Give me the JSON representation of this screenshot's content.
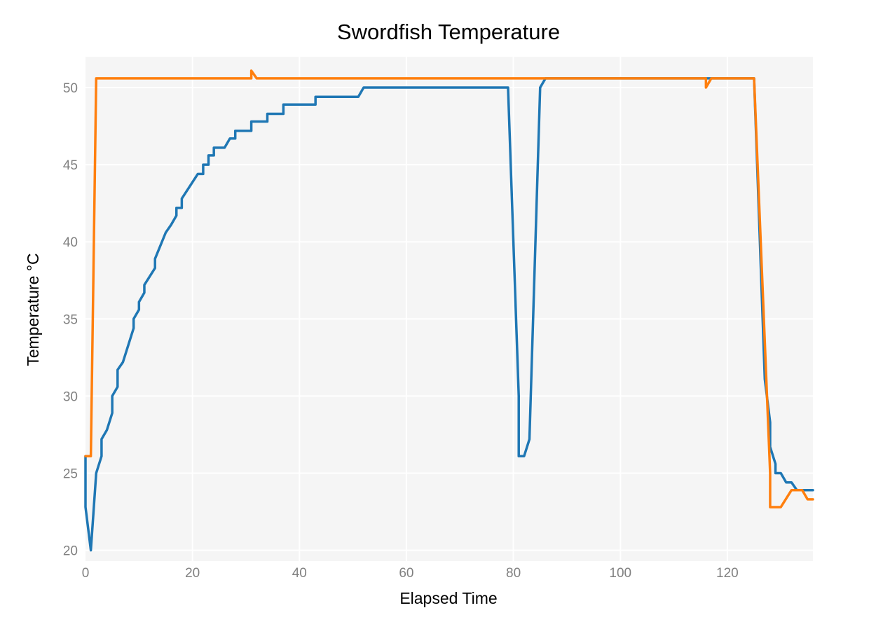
{
  "chart_data": {
    "type": "line",
    "title": "Swordfish Temperature",
    "xlabel": "Elapsed Time",
    "ylabel": "Temperature °C",
    "xlim": [
      0,
      136
    ],
    "ylim": [
      19.3,
      52
    ],
    "xticks": [
      0,
      20,
      40,
      60,
      80,
      100,
      120
    ],
    "yticks": [
      20,
      25,
      30,
      35,
      40,
      45,
      50
    ],
    "grid": true,
    "legend": "none",
    "plot_background": "#f5f5f5",
    "series": [
      {
        "color": "#1f77b4",
        "x": [
          0,
          0,
          1,
          2,
          3,
          3,
          4,
          5,
          5,
          6,
          6,
          7,
          9,
          9,
          10,
          10,
          11,
          11,
          13,
          13,
          15,
          16,
          17,
          17,
          18,
          18,
          21,
          22,
          22,
          23,
          23,
          24,
          24,
          26,
          27,
          28,
          28,
          31,
          31,
          34,
          34,
          37,
          37,
          43,
          43,
          51,
          52,
          79,
          81,
          81,
          82,
          83,
          85,
          86,
          125,
          127,
          128,
          128,
          129,
          129,
          130,
          131,
          132,
          133,
          136
        ],
        "y": [
          26.1,
          22.8,
          20.0,
          25.0,
          26.1,
          27.2,
          27.8,
          28.9,
          30.0,
          30.6,
          31.7,
          32.2,
          34.4,
          35.0,
          35.6,
          36.1,
          36.7,
          37.2,
          38.3,
          38.9,
          40.6,
          41.1,
          41.7,
          42.2,
          42.2,
          42.8,
          44.4,
          44.4,
          45.0,
          45.0,
          45.6,
          45.6,
          46.1,
          46.1,
          46.7,
          46.7,
          47.2,
          47.2,
          47.8,
          47.8,
          48.3,
          48.3,
          48.9,
          48.9,
          49.4,
          49.4,
          50.0,
          50.0,
          30.0,
          26.1,
          26.1,
          27.2,
          50.0,
          50.6,
          50.6,
          31.1,
          28.3,
          26.7,
          25.6,
          25.0,
          25.0,
          24.4,
          24.4,
          23.9,
          23.9
        ]
      },
      {
        "color": "#ff7f0e",
        "x": [
          0,
          1,
          2,
          31,
          31,
          32,
          32,
          116,
          116,
          117,
          117,
          125,
          128,
          128,
          130,
          132,
          134,
          135,
          136
        ],
        "y": [
          26.1,
          26.1,
          50.6,
          50.6,
          51.1,
          50.6,
          50.6,
          50.6,
          50.0,
          50.6,
          50.6,
          50.6,
          25.0,
          22.8,
          22.8,
          23.9,
          23.9,
          23.3,
          23.3
        ]
      }
    ]
  }
}
